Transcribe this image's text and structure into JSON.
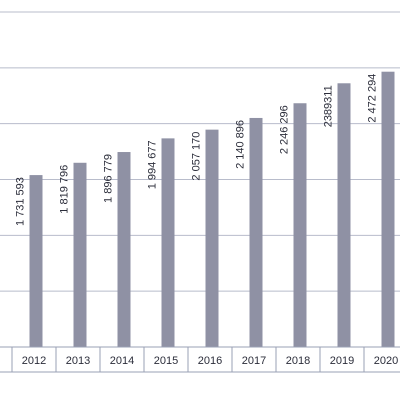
{
  "chart_data": {
    "type": "bar",
    "categories": [
      "2012",
      "2013",
      "2014",
      "2015",
      "2016",
      "2017",
      "2018",
      "2019",
      "2020"
    ],
    "values": [
      1731593,
      1819796,
      1896779,
      1994677,
      2057170,
      2140896,
      2246296,
      2389311,
      2472294
    ],
    "value_labels": [
      "1 731 593",
      "1 819 796",
      "1 896 779",
      "1 994 677",
      "2 057 170",
      "2 140 896",
      "2 246 296",
      "2389311",
      "2 472 294"
    ],
    "ylim": [
      500000,
      2900000
    ],
    "grid": true,
    "colors": {
      "bar": "#8f91a4",
      "grid": "#b8bccb"
    }
  }
}
